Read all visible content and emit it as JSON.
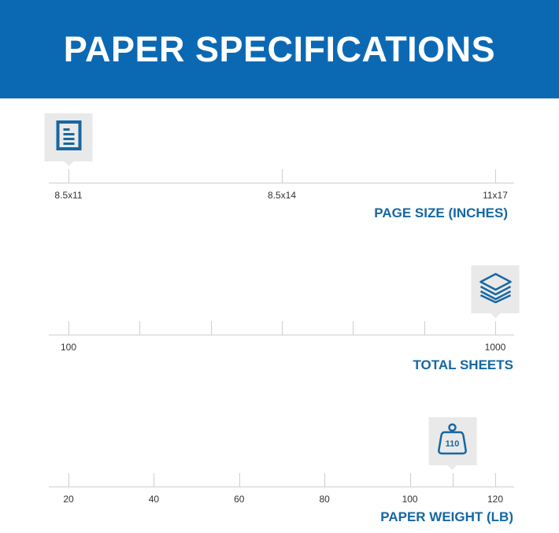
{
  "header": {
    "title": "PAPER SPECIFICATIONS"
  },
  "colors": {
    "header_bg": "#0b69b4",
    "accent": "#1667a3",
    "marker_bg": "#e9e9e9"
  },
  "scales": [
    {
      "title": "PAGE SIZE (INCHES)",
      "type": "categorical",
      "ticks": [
        "8.5x11",
        "8.5x14",
        "11x17"
      ],
      "labels": [
        "8.5x11",
        "8.5x14",
        "11x17"
      ],
      "selected": "8.5x11",
      "icon": "document-icon"
    },
    {
      "title": "TOTAL SHEETS",
      "type": "numeric",
      "min": 100,
      "max": 1000,
      "ticks": [
        100,
        250,
        400,
        550,
        700,
        850,
        1000
      ],
      "labels": [
        "100",
        "1000"
      ],
      "selected": 1000,
      "icon": "paper-stack-icon"
    },
    {
      "title": "PAPER WEIGHT (LB)",
      "type": "numeric",
      "min": 20,
      "max": 120,
      "ticks": [
        20,
        40,
        60,
        80,
        100,
        110,
        120
      ],
      "labels": [
        "20",
        "40",
        "60",
        "80",
        "100",
        "120"
      ],
      "selected": 110,
      "icon": "weight-icon",
      "icon_text": "110"
    }
  ]
}
